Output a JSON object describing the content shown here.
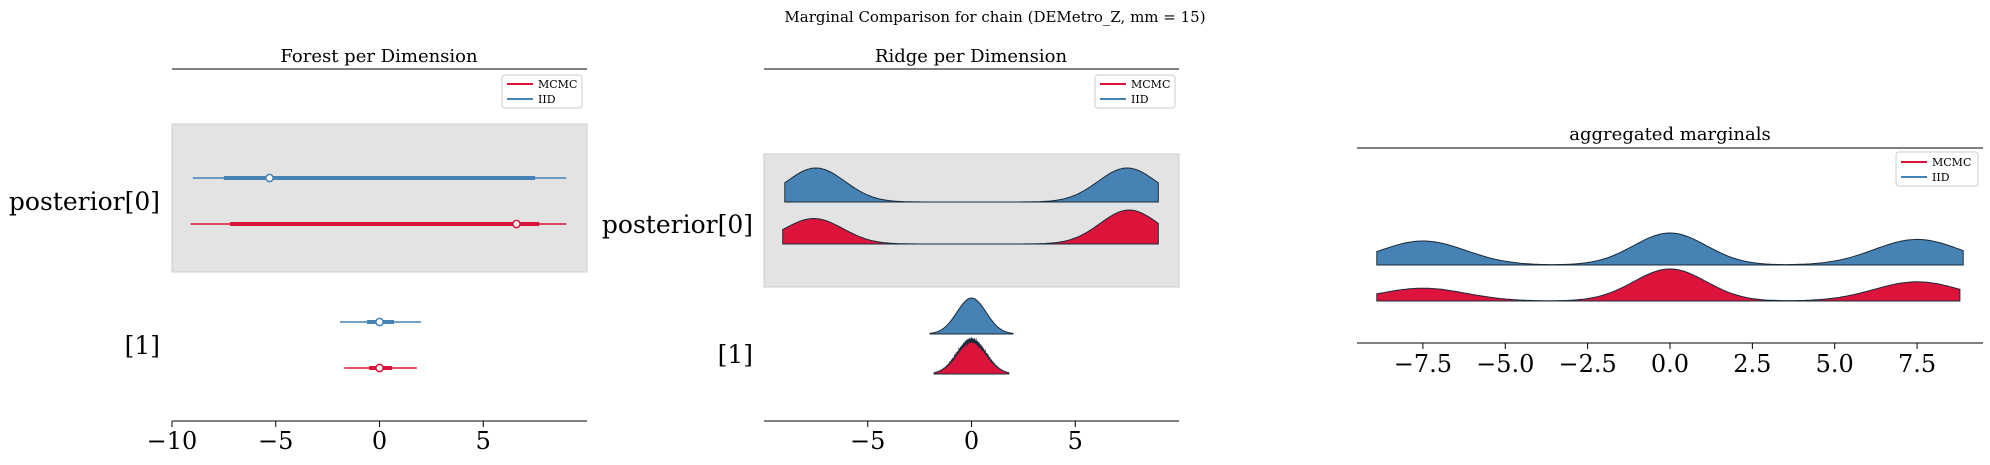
{
  "suptitle": "Marginal Comparison for chain (DEMetro_Z, mm = 15)",
  "colors": {
    "mcmc": "#dc143c",
    "iid": "#4682b4",
    "band": "#e3e3e3"
  },
  "legend": [
    "MCMC",
    "IID"
  ],
  "chart_data": [
    {
      "type": "forest",
      "title": "Forest per Dimension",
      "row_labels": [
        "posterior[0]",
        "[1]"
      ],
      "xlim": [
        -10,
        10
      ],
      "xticks": [
        -10,
        -5,
        0,
        5
      ],
      "xtick_labels": [
        "−10",
        "−5",
        "0",
        "5"
      ],
      "legend_position": "top-right",
      "series": [
        {
          "name": "IID",
          "rows": [
            {
              "median": -5.3,
              "q_inner": [
                -7.5,
                7.5
              ],
              "range": [
                -9.0,
                9.0
              ]
            },
            {
              "median": 0.0,
              "q_inner": [
                -0.6,
                0.7
              ],
              "range": [
                -1.9,
                2.0
              ]
            }
          ]
        },
        {
          "name": "MCMC",
          "rows": [
            {
              "median": 6.6,
              "q_inner": [
                -7.2,
                7.7
              ],
              "range": [
                -9.1,
                9.0
              ]
            },
            {
              "median": 0.0,
              "q_inner": [
                -0.5,
                0.6
              ],
              "range": [
                -1.7,
                1.8
              ]
            }
          ]
        }
      ]
    },
    {
      "type": "ridge",
      "title": "Ridge per Dimension",
      "row_labels": [
        "posterior[0]",
        "[1]"
      ],
      "xlim": [
        -10,
        10
      ],
      "xticks": [
        -5,
        0,
        5
      ],
      "xtick_labels": [
        "−5",
        "0",
        "5"
      ],
      "legend_position": "top-right",
      "series": [
        {
          "name": "IID",
          "rows": [
            {
              "support": [
                -9.0,
                9.0
              ],
              "modes": [
                [
                  -7.5,
                  1.4,
                  1.0
                ],
                [
                  7.5,
                  1.4,
                  1.0
                ]
              ]
            },
            {
              "support": [
                -2.0,
                2.0
              ],
              "modes": [
                [
                  0.0,
                  0.7,
                  1.0
                ]
              ]
            }
          ]
        },
        {
          "name": "MCMC",
          "rows": [
            {
              "support": [
                -9.1,
                9.0
              ],
              "modes": [
                [
                  -7.6,
                  1.4,
                  0.75
                ],
                [
                  7.6,
                  1.4,
                  1.0
                ]
              ]
            },
            {
              "support": [
                -1.8,
                1.8
              ],
              "modes": [
                [
                  0.0,
                  0.7,
                  1.0
                ]
              ]
            }
          ]
        }
      ]
    },
    {
      "type": "ridge",
      "title": "aggregated marginals",
      "xlim": [
        -9.5,
        9.5
      ],
      "xticks": [
        -7.5,
        -5.0,
        -2.5,
        0.0,
        2.5,
        5.0,
        7.5
      ],
      "xtick_labels": [
        "−7.5",
        "−5.0",
        "−2.5",
        "0.0",
        "2.5",
        "5.0",
        "7.5"
      ],
      "legend_position": "top-right",
      "series": [
        {
          "name": "IID",
          "support": [
            -8.9,
            8.9
          ],
          "modes": [
            [
              -7.5,
              1.3,
              0.75
            ],
            [
              0.0,
              1.1,
              1.0
            ],
            [
              7.5,
              1.3,
              0.8
            ]
          ]
        },
        {
          "name": "MCMC",
          "support": [
            -8.9,
            8.8
          ],
          "modes": [
            [
              -7.5,
              1.3,
              0.4
            ],
            [
              0.0,
              1.1,
              1.0
            ],
            [
              7.5,
              1.3,
              0.6
            ]
          ]
        }
      ]
    }
  ]
}
